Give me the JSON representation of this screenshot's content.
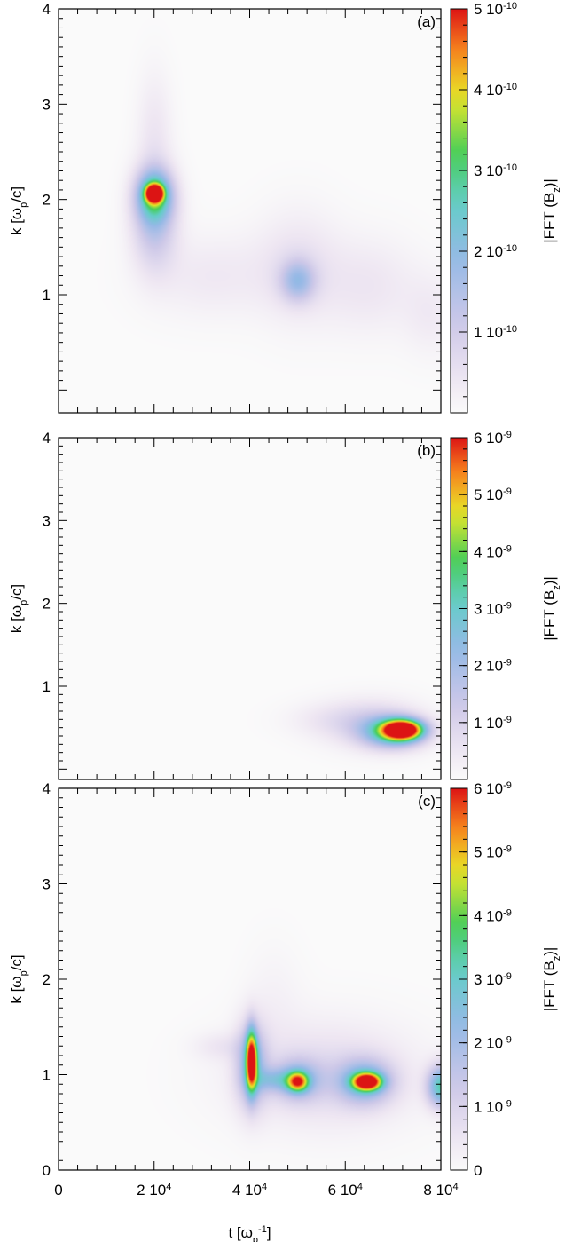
{
  "chart_data": [
    {
      "type": "heatmap",
      "panel_label": "(a)",
      "ylabel_parts": [
        "k [ω",
        "p",
        "/c]"
      ],
      "xlim": [
        0,
        80000
      ],
      "ylim": [
        0,
        4
      ],
      "yticks": [
        "1",
        "2",
        "3",
        "4"
      ],
      "colorbar": {
        "label_parts": [
          "|FFT (B",
          "z",
          ")|"
        ],
        "range": [
          0,
          5e-10
        ],
        "ticks": [
          {
            "value": 1e-10,
            "mant": "1 10",
            "exp": "-10"
          },
          {
            "value": 2e-10,
            "mant": "2 10",
            "exp": "-10"
          },
          {
            "value": 3e-10,
            "mant": "3 10",
            "exp": "-10"
          },
          {
            "value": 4e-10,
            "mant": "4 10",
            "exp": "-10"
          },
          {
            "value": 5e-10,
            "mant": "5 10",
            "exp": "-10"
          }
        ]
      },
      "blobs": [
        {
          "t": 20000,
          "k": 2.07,
          "st": 1200,
          "sk": 0.06,
          "amp": 5e-10
        },
        {
          "t": 20000,
          "k": 2.05,
          "st": 2600,
          "sk": 0.18,
          "amp": 2.4e-10
        },
        {
          "t": 20000,
          "k": 1.8,
          "st": 3200,
          "sk": 0.35,
          "amp": 1.4e-10
        },
        {
          "t": 20000,
          "k": 2.7,
          "st": 2500,
          "sk": 0.45,
          "amp": 4e-11
        },
        {
          "t": 32000,
          "k": 1.2,
          "st": 9000,
          "sk": 0.3,
          "amp": 3.5e-11
        },
        {
          "t": 50000,
          "k": 1.15,
          "st": 2500,
          "sk": 0.15,
          "amp": 1.4e-10
        },
        {
          "t": 50000,
          "k": 1.3,
          "st": 6000,
          "sk": 0.4,
          "amp": 5e-11
        },
        {
          "t": 65000,
          "k": 1.1,
          "st": 7000,
          "sk": 0.35,
          "amp": 4e-11
        },
        {
          "t": 78000,
          "k": 0.8,
          "st": 4000,
          "sk": 0.3,
          "amp": 3e-11
        }
      ]
    },
    {
      "type": "heatmap",
      "panel_label": "(b)",
      "ylabel_parts": [
        "k [ω",
        "p",
        "/c]"
      ],
      "xlim": [
        0,
        80000
      ],
      "ylim": [
        0,
        4
      ],
      "yticks": [
        "1",
        "2",
        "3",
        "4"
      ],
      "colorbar": {
        "label_parts": [
          "|FFT (B",
          "z",
          ")|"
        ],
        "range": [
          0,
          6e-09
        ],
        "ticks": [
          {
            "value": 1e-09,
            "mant": "1 10",
            "exp": "-9"
          },
          {
            "value": 2e-09,
            "mant": "2 10",
            "exp": "-9"
          },
          {
            "value": 3e-09,
            "mant": "3 10",
            "exp": "-9"
          },
          {
            "value": 4e-09,
            "mant": "4 10",
            "exp": "-9"
          },
          {
            "value": 5e-09,
            "mant": "5 10",
            "exp": "-9"
          },
          {
            "value": 6e-09,
            "mant": "6 10",
            "exp": "-9"
          }
        ]
      },
      "blobs": [
        {
          "t": 72000,
          "k": 0.48,
          "st": 2800,
          "sk": 0.08,
          "amp": 6e-09
        },
        {
          "t": 70000,
          "k": 0.45,
          "st": 4500,
          "sk": 0.13,
          "amp": 3e-09
        },
        {
          "t": 66000,
          "k": 0.55,
          "st": 7000,
          "sk": 0.2,
          "amp": 9e-10
        },
        {
          "t": 58000,
          "k": 0.6,
          "st": 7000,
          "sk": 0.15,
          "amp": 4e-10
        }
      ]
    },
    {
      "type": "heatmap",
      "panel_label": "(c)",
      "ylabel_parts": [
        "k [ω",
        "p",
        "/c]"
      ],
      "xlabel_parts": [
        "t [ω",
        "p",
        "-1",
        "]"
      ],
      "xlim": [
        0,
        80000
      ],
      "ylim": [
        0,
        4
      ],
      "xticks": [
        {
          "value": 0,
          "mant": "0",
          "exp": ""
        },
        {
          "value": 20000,
          "mant": "2 10",
          "exp": "4"
        },
        {
          "value": 40000,
          "mant": "4 10",
          "exp": "4"
        },
        {
          "value": 60000,
          "mant": "6 10",
          "exp": "4"
        },
        {
          "value": 80000,
          "mant": "8 10",
          "exp": "4"
        }
      ],
      "yticks": [
        "0",
        "1",
        "2",
        "3",
        "4"
      ],
      "colorbar": {
        "label_parts": [
          "|FFT (B",
          "z",
          ")|"
        ],
        "range": [
          0,
          6e-09
        ],
        "ticks": [
          {
            "value": 0,
            "mant": "0",
            "exp": ""
          },
          {
            "value": 1e-09,
            "mant": "1 10",
            "exp": "-9"
          },
          {
            "value": 2e-09,
            "mant": "2 10",
            "exp": "-9"
          },
          {
            "value": 3e-09,
            "mant": "3 10",
            "exp": "-9"
          },
          {
            "value": 4e-09,
            "mant": "4 10",
            "exp": "-9"
          },
          {
            "value": 5e-09,
            "mant": "5 10",
            "exp": "-9"
          },
          {
            "value": 6e-09,
            "mant": "6 10",
            "exp": "-9"
          }
        ]
      },
      "blobs": [
        {
          "t": 40300,
          "k": 1.15,
          "st": 800,
          "sk": 0.22,
          "amp": 5e-09
        },
        {
          "t": 40300,
          "k": 1.1,
          "st": 2200,
          "sk": 0.3,
          "amp": 2.2e-09
        },
        {
          "t": 64500,
          "k": 0.93,
          "st": 2000,
          "sk": 0.06,
          "amp": 5.5e-09
        },
        {
          "t": 64000,
          "k": 0.93,
          "st": 4000,
          "sk": 0.16,
          "amp": 2.4e-09
        },
        {
          "t": 50000,
          "k": 0.93,
          "st": 1500,
          "sk": 0.07,
          "amp": 3.8e-09
        },
        {
          "t": 50000,
          "k": 0.95,
          "st": 3500,
          "sk": 0.15,
          "amp": 1.8e-09
        },
        {
          "t": 45000,
          "k": 0.95,
          "st": 3000,
          "sk": 0.08,
          "amp": 1.2e-09
        },
        {
          "t": 80000,
          "k": 0.88,
          "st": 2000,
          "sk": 0.15,
          "amp": 3.2e-09
        },
        {
          "t": 56000,
          "k": 1.0,
          "st": 13000,
          "sk": 0.38,
          "amp": 8e-10
        },
        {
          "t": 34000,
          "k": 1.3,
          "st": 4000,
          "sk": 0.1,
          "amp": 4e-10
        },
        {
          "t": 45000,
          "k": 1.8,
          "st": 4000,
          "sk": 0.4,
          "amp": 2e-10
        }
      ]
    }
  ]
}
